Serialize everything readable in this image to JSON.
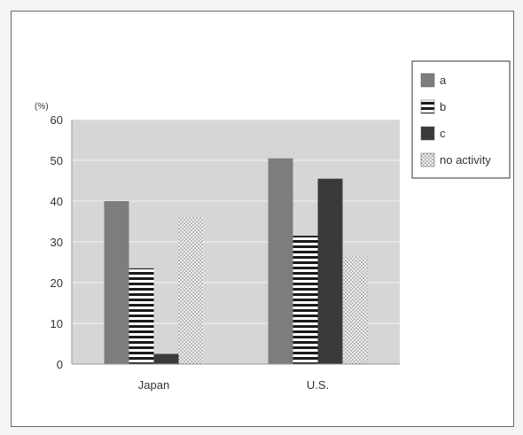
{
  "chart_data": {
    "type": "bar",
    "title": "",
    "xlabel": "",
    "ylabel": "",
    "unit": "(%)",
    "categories": [
      "Japan",
      "U.S."
    ],
    "series": [
      {
        "name": "a",
        "values": [
          40,
          50.5
        ],
        "pattern": "solid-gray",
        "color": "#7d7d7d"
      },
      {
        "name": "b",
        "values": [
          23.5,
          31.5
        ],
        "pattern": "horizontal-stripes",
        "color": "#1a1a1a"
      },
      {
        "name": "c",
        "values": [
          2.5,
          45.5
        ],
        "pattern": "solid-dark",
        "color": "#3a3a3a"
      },
      {
        "name": "no activity",
        "values": [
          36,
          26.5
        ],
        "pattern": "dots",
        "color": "#9a9a9a"
      }
    ],
    "ylim": [
      0,
      60
    ],
    "yticks": [
      0,
      10,
      20,
      30,
      40,
      50,
      60
    ],
    "grid": true,
    "legend_position": "top-right",
    "plot_background": "#d6d6d6"
  }
}
